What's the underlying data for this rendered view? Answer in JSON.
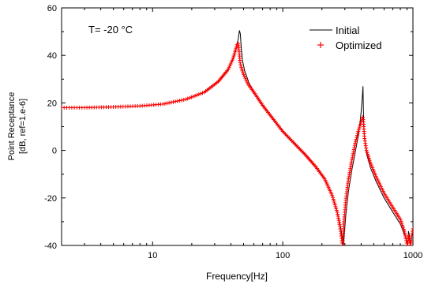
{
  "chart_data": {
    "type": "line",
    "annotation": "T= -20 °C",
    "xlabel": "Frequency[Hz]",
    "ylabel": [
      "Point Receptance",
      "[dB, ref=1.e-6]"
    ],
    "x_scale": "log",
    "xlim": [
      2,
      1000
    ],
    "ylim": [
      -40,
      60
    ],
    "x_ticks": [
      10,
      100,
      1000
    ],
    "x_tick_labels": [
      "10",
      "100",
      "1000"
    ],
    "y_ticks": [
      -40,
      -20,
      0,
      20,
      40,
      60
    ],
    "y_tick_labels": [
      "-40",
      "-20",
      "0",
      "20",
      "40",
      "60"
    ],
    "grid": false,
    "legend_position": "top-right",
    "series": [
      {
        "name": "Initial",
        "style": "line",
        "color": "#000000",
        "x": [
          2,
          3,
          5,
          8,
          12,
          18,
          25,
          32,
          38,
          42,
          44,
          45.5,
          46.5,
          47.2,
          48,
          49,
          51,
          55,
          60,
          70,
          85,
          100,
          120,
          150,
          180,
          210,
          240,
          265,
          280,
          288,
          292,
          296,
          305,
          320,
          340,
          360,
          380,
          395,
          405,
          410,
          413,
          415,
          417,
          420,
          425,
          440,
          470,
          520,
          600,
          700,
          800,
          870,
          900,
          910,
          918,
          925,
          940,
          960,
          980,
          1000
        ],
        "y": [
          18,
          18,
          18.3,
          18.7,
          19.5,
          21.5,
          24.5,
          29,
          34,
          39,
          43,
          47,
          50.5,
          49,
          43,
          38,
          33.5,
          28.5,
          24.5,
          19,
          13,
          8,
          3.5,
          -2,
          -7,
          -12,
          -19,
          -27,
          -33,
          -38,
          -40,
          -36,
          -27,
          -17,
          -8,
          -1,
          6,
          13,
          20,
          24,
          27,
          22,
          15,
          10,
          5,
          -1,
          -7,
          -13,
          -20,
          -26,
          -31,
          -36,
          -38,
          -40,
          -38,
          -34,
          -36,
          -40,
          -36,
          -33
        ]
      },
      {
        "name": "Optimized",
        "style": "markers",
        "marker": "+",
        "color": "#ff0000",
        "x": [
          2,
          3,
          5,
          8,
          12,
          18,
          25,
          32,
          38,
          41,
          43,
          44.5,
          45.5,
          46.3,
          47,
          48,
          50,
          54,
          60,
          70,
          85,
          100,
          120,
          150,
          180,
          210,
          240,
          262,
          275,
          283,
          287,
          290,
          295,
          305,
          320,
          340,
          360,
          380,
          395,
          405,
          412,
          416,
          420,
          425,
          440,
          470,
          520,
          600,
          700,
          800,
          860,
          890,
          905,
          915,
          925,
          940,
          960,
          980,
          1000
        ],
        "y": [
          18,
          18,
          18.3,
          18.7,
          19.5,
          21.5,
          24.5,
          29,
          34,
          38,
          41.5,
          44.5,
          45,
          41.5,
          37,
          35,
          32,
          28,
          24.5,
          19,
          13,
          8,
          3.5,
          -2,
          -7,
          -12,
          -19,
          -26,
          -32,
          -37,
          -40,
          -37,
          -30,
          -21,
          -12,
          -4,
          3,
          8,
          11,
          13,
          14,
          12,
          9,
          5,
          0,
          -5,
          -11,
          -18,
          -24,
          -29,
          -34,
          -38,
          -40,
          -39,
          -36,
          -38,
          -40,
          -36,
          -33
        ]
      }
    ]
  }
}
